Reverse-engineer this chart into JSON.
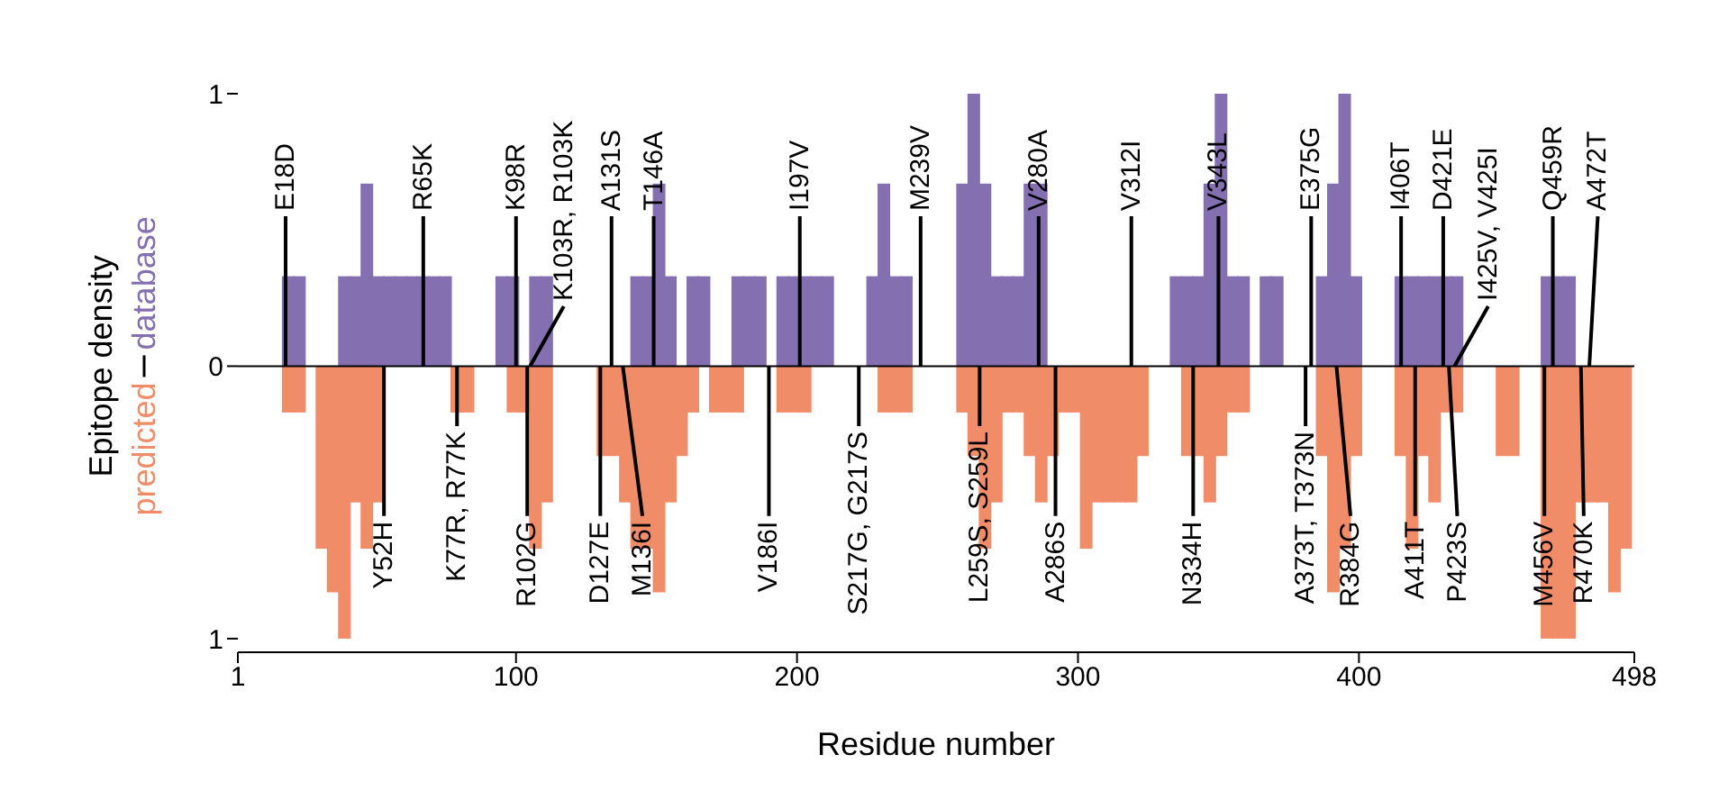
{
  "chart_data": {
    "type": "bar",
    "xlabel": "Residue number",
    "ylabel": "Epitope density",
    "xlim": [
      1,
      498
    ],
    "xticks": [
      1,
      100,
      200,
      300,
      400,
      498
    ],
    "ylim": [
      -1.05,
      1
    ],
    "yticks": [
      {
        "value": -1,
        "label": "1"
      },
      0,
      1
    ],
    "x": [
      3,
      7,
      11,
      15,
      19,
      23,
      27,
      31,
      35,
      39,
      43,
      47,
      51,
      55,
      59,
      63,
      67,
      71,
      75,
      79,
      83,
      87,
      91,
      95,
      99,
      103,
      107,
      111,
      115,
      119,
      123,
      127,
      131,
      135,
      139,
      143,
      147,
      151,
      155,
      159,
      163,
      167,
      171,
      175,
      179,
      183,
      187,
      191,
      195,
      199,
      203,
      207,
      211,
      215,
      219,
      223,
      227,
      231,
      235,
      239,
      243,
      247,
      251,
      255,
      259,
      263,
      267,
      271,
      275,
      279,
      283,
      287,
      291,
      295,
      299,
      303,
      307,
      311,
      315,
      319,
      323,
      327,
      331,
      335,
      339,
      343,
      347,
      351,
      355,
      359,
      363,
      367,
      371,
      375,
      379,
      383,
      387,
      391,
      395,
      399,
      403,
      407,
      411,
      415,
      419,
      423,
      427,
      431,
      435,
      439,
      443,
      447,
      451,
      455,
      459,
      463,
      467,
      471,
      475,
      479,
      483,
      487,
      491,
      495
    ],
    "series": [
      {
        "name": "database",
        "color": "#8470b0",
        "values": [
          0,
          0,
          0,
          0,
          0.33,
          0.33,
          0,
          0,
          0,
          0.33,
          0.33,
          0.67,
          0.33,
          0.33,
          0.33,
          0.33,
          0.33,
          0.33,
          0.33,
          0,
          0,
          0,
          0,
          0.33,
          0.33,
          0,
          0.33,
          0.33,
          0,
          0,
          0,
          0,
          0,
          0,
          0,
          0.33,
          0.33,
          0.67,
          0.33,
          0,
          0.33,
          0.33,
          0,
          0,
          0.33,
          0.33,
          0.33,
          0,
          0.33,
          0.33,
          0.33,
          0.33,
          0.33,
          0,
          0,
          0,
          0.33,
          0.67,
          0.33,
          0.33,
          0,
          0,
          0,
          0,
          0.67,
          1,
          0.67,
          0.33,
          0.33,
          0.33,
          0.67,
          0.67,
          0,
          0,
          0,
          0,
          0,
          0,
          0,
          0,
          0,
          0,
          0,
          0.33,
          0.33,
          0.33,
          0.67,
          1,
          0.33,
          0.33,
          0,
          0.33,
          0.33,
          0,
          0,
          0,
          0.33,
          0.67,
          1,
          0.33,
          0,
          0,
          0,
          0.33,
          0.33,
          0.33,
          0.33,
          0.33,
          0.33,
          0,
          0,
          0,
          0,
          0,
          0,
          0,
          0.33,
          0.33,
          0.33,
          0,
          0,
          0,
          0,
          0
        ]
      },
      {
        "name": "predicted",
        "color": "#f08c68",
        "values": [
          0,
          0,
          0,
          0,
          -0.17,
          -0.17,
          0,
          -0.67,
          -0.83,
          -1,
          -0.5,
          -0.67,
          -0.5,
          0,
          0,
          0,
          0,
          0,
          0,
          -0.17,
          -0.17,
          0,
          0,
          0,
          -0.17,
          -0.17,
          -0.67,
          -0.5,
          0,
          0,
          0,
          0,
          -0.33,
          -0.33,
          -0.5,
          -0.67,
          -0.67,
          -0.83,
          -0.5,
          -0.33,
          -0.17,
          0,
          -0.17,
          -0.17,
          -0.17,
          0,
          0,
          0,
          -0.17,
          -0.17,
          -0.17,
          0,
          0,
          0,
          0,
          0,
          0,
          -0.17,
          -0.17,
          -0.17,
          0,
          0,
          0,
          0,
          -0.17,
          -0.33,
          -0.67,
          -0.5,
          -0.17,
          -0.17,
          -0.33,
          -0.5,
          -0.33,
          -0.17,
          -0.17,
          -0.67,
          -0.5,
          -0.5,
          -0.5,
          -0.5,
          -0.33,
          0,
          0,
          0,
          -0.33,
          -0.33,
          -0.5,
          -0.33,
          -0.17,
          -0.17,
          0,
          0,
          0,
          0,
          0,
          0,
          -0.33,
          -0.83,
          -0.67,
          -0.33,
          0,
          0,
          0,
          -0.33,
          -0.67,
          -0.33,
          -0.5,
          -0.17,
          -0.17,
          0,
          0,
          0,
          -0.33,
          -0.33,
          0,
          0,
          -1,
          -1,
          -1,
          -0.5,
          -0.5,
          -0.5,
          -0.83,
          -0.67
        ]
      },
      {
        "type": "line",
        "color": "#000000",
        "x": [
          18,
          18
        ],
        "values": [
          0,
          0.55
        ]
      },
      {
        "type": "line",
        "color": "#000000",
        "x": [
          67,
          67
        ],
        "values": [
          0,
          0.55
        ]
      },
      {
        "type": "line",
        "color": "#000000",
        "x": [
          100,
          100
        ],
        "values": [
          0,
          0.55
        ]
      },
      {
        "type": "line",
        "color": "#000000",
        "x": [
          105,
          117
        ],
        "values": [
          0,
          0.22
        ]
      },
      {
        "type": "line",
        "color": "#000000",
        "x": [
          134,
          134
        ],
        "values": [
          0,
          0.55
        ]
      },
      {
        "type": "line",
        "color": "#000000",
        "x": [
          149,
          149
        ],
        "values": [
          0,
          0.55
        ]
      },
      {
        "type": "line",
        "color": "#000000",
        "x": [
          201,
          201
        ],
        "values": [
          0,
          0.55
        ]
      },
      {
        "type": "line",
        "color": "#000000",
        "x": [
          244,
          244
        ],
        "values": [
          0,
          0.55
        ]
      },
      {
        "type": "line",
        "color": "#000000",
        "x": [
          286,
          286
        ],
        "values": [
          0,
          0.55
        ]
      },
      {
        "type": "line",
        "color": "#000000",
        "x": [
          319,
          319
        ],
        "values": [
          0,
          0.55
        ]
      },
      {
        "type": "line",
        "color": "#000000",
        "x": [
          350,
          350
        ],
        "values": [
          0,
          0.55
        ]
      },
      {
        "type": "line",
        "color": "#000000",
        "x": [
          383,
          383
        ],
        "values": [
          0,
          0.55
        ]
      },
      {
        "type": "line",
        "color": "#000000",
        "x": [
          415,
          415
        ],
        "values": [
          0,
          0.55
        ]
      },
      {
        "type": "line",
        "color": "#000000",
        "x": [
          430,
          430
        ],
        "values": [
          0,
          0.55
        ]
      },
      {
        "type": "line",
        "color": "#000000",
        "x": [
          434,
          446
        ],
        "values": [
          0,
          0.22
        ]
      },
      {
        "type": "line",
        "color": "#000000",
        "x": [
          469,
          469
        ],
        "values": [
          0,
          0.55
        ]
      },
      {
        "type": "line",
        "color": "#000000",
        "x": [
          482,
          485
        ],
        "values": [
          0,
          0.55
        ]
      },
      {
        "type": "line",
        "color": "#000000",
        "x": [
          53,
          53
        ],
        "values": [
          0,
          -0.55
        ]
      },
      {
        "type": "line",
        "color": "#000000",
        "x": [
          79,
          79
        ],
        "values": [
          0,
          -0.22
        ]
      },
      {
        "type": "line",
        "color": "#000000",
        "x": [
          104,
          104
        ],
        "values": [
          0,
          -0.55
        ]
      },
      {
        "type": "line",
        "color": "#000000",
        "x": [
          130,
          130
        ],
        "values": [
          0,
          -0.55
        ]
      },
      {
        "type": "line",
        "color": "#000000",
        "x": [
          138,
          145
        ],
        "values": [
          0,
          -0.55
        ]
      },
      {
        "type": "line",
        "color": "#000000",
        "x": [
          190,
          190
        ],
        "values": [
          0,
          -0.55
        ]
      },
      {
        "type": "line",
        "color": "#000000",
        "x": [
          222,
          222
        ],
        "values": [
          0,
          -0.22
        ]
      },
      {
        "type": "line",
        "color": "#000000",
        "x": [
          265,
          265
        ],
        "values": [
          0,
          -0.22
        ]
      },
      {
        "type": "line",
        "color": "#000000",
        "x": [
          292,
          292
        ],
        "values": [
          0,
          -0.55
        ]
      },
      {
        "type": "line",
        "color": "#000000",
        "x": [
          341,
          341
        ],
        "values": [
          0,
          -0.55
        ]
      },
      {
        "type": "line",
        "color": "#000000",
        "x": [
          381,
          381
        ],
        "values": [
          0,
          -0.22
        ]
      },
      {
        "type": "line",
        "color": "#000000",
        "x": [
          392,
          397
        ],
        "values": [
          0,
          -0.55
        ]
      },
      {
        "type": "line",
        "color": "#000000",
        "x": [
          420,
          420
        ],
        "values": [
          0,
          -0.55
        ]
      },
      {
        "type": "line",
        "color": "#000000",
        "x": [
          432,
          435
        ],
        "values": [
          0,
          -0.55
        ]
      },
      {
        "type": "line",
        "color": "#000000",
        "x": [
          466,
          466
        ],
        "values": [
          0,
          -0.55
        ]
      },
      {
        "type": "line",
        "color": "#000000",
        "x": [
          479,
          480
        ],
        "values": [
          0,
          -0.55
        ]
      }
    ],
    "ref_lines": [
      {
        "axis": "y",
        "value": 0,
        "color": "#000000"
      }
    ],
    "annotations": [
      {
        "text": "E18D",
        "x": 18,
        "y": 0.55
      },
      {
        "text": "R65K",
        "x": 67,
        "y": 0.55
      },
      {
        "text": "K98R",
        "x": 100,
        "y": 0.55
      },
      {
        "text": "K103R, R103K",
        "x": 117,
        "y": 0.22
      },
      {
        "text": "A131S",
        "x": 134,
        "y": 0.55
      },
      {
        "text": "T146A",
        "x": 149,
        "y": 0.55
      },
      {
        "text": "I197V",
        "x": 201,
        "y": 0.55
      },
      {
        "text": "M239V",
        "x": 244,
        "y": 0.55
      },
      {
        "text": "V280A",
        "x": 286,
        "y": 0.55
      },
      {
        "text": "V312I",
        "x": 319,
        "y": 0.55
      },
      {
        "text": "V343L",
        "x": 350,
        "y": 0.55
      },
      {
        "text": "E375G",
        "x": 383,
        "y": 0.55
      },
      {
        "text": "I406T",
        "x": 415,
        "y": 0.55
      },
      {
        "text": "D421E",
        "x": 430,
        "y": 0.55
      },
      {
        "text": "I425V, V425I",
        "x": 446,
        "y": 0.22
      },
      {
        "text": "Q459R",
        "x": 469,
        "y": 0.55
      },
      {
        "text": "A472T",
        "x": 485,
        "y": 0.55
      },
      {
        "text": "Y52H",
        "x": 53,
        "y": -0.55
      },
      {
        "text": "K77R, R77K",
        "x": 79,
        "y": -0.22
      },
      {
        "text": "R102G",
        "x": 104,
        "y": -0.55
      },
      {
        "text": "D127E",
        "x": 130,
        "y": -0.55
      },
      {
        "text": "M136I",
        "x": 145,
        "y": -0.55
      },
      {
        "text": "V186I",
        "x": 190,
        "y": -0.55
      },
      {
        "text": "S217G, G217S",
        "x": 222,
        "y": -0.22
      },
      {
        "text": "L259S, S259L",
        "x": 265,
        "y": -0.22
      },
      {
        "text": "A286S",
        "x": 292,
        "y": -0.55
      },
      {
        "text": "N334H",
        "x": 341,
        "y": -0.55
      },
      {
        "text": "A373T, T373N",
        "x": 381,
        "y": -0.22
      },
      {
        "text": "R384G",
        "x": 397,
        "y": -0.55
      },
      {
        "text": "A411T",
        "x": 420,
        "y": -0.55
      },
      {
        "text": "P423S",
        "x": 435,
        "y": -0.55
      },
      {
        "text": "M456V",
        "x": 466,
        "y": -0.55
      },
      {
        "text": "R470K",
        "x": 480,
        "y": -0.55
      }
    ]
  }
}
